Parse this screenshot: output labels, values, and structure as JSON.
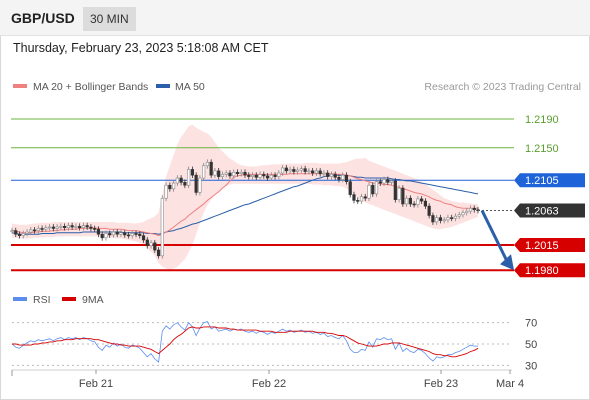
{
  "header": {
    "symbol": "GBP/USD",
    "timeframe": "30 MIN"
  },
  "datetime": "Thursday, February 23, 2023 5:18:08 AM CET",
  "copyright": "Research © 2023 Trading Central",
  "colors": {
    "ma20": "#f08080",
    "ma50": "#2b5fa8",
    "bb": "#fde2e2",
    "green": "#6db33f",
    "blue": "#1f63d9",
    "red": "#d60000",
    "dark": "#333333",
    "rsi": "#5b8def",
    "rsi_ma": "#d60000",
    "arrow": "#2b5fa8",
    "up": "#888888",
    "down": "#333333"
  },
  "chart_data": [
    {
      "type": "candlestick",
      "legend": [
        "MA 20 + Bollinger Bands",
        "MA 50"
      ],
      "ylim": [
        1.1965,
        1.2215
      ],
      "x_ticks": [
        "Feb 21",
        "Feb 22",
        "Feb 23",
        "Mar 4"
      ],
      "levels": [
        {
          "value": 1.219,
          "label": "1.2190",
          "style": "green"
        },
        {
          "value": 1.215,
          "label": "1.2150",
          "style": "green"
        },
        {
          "value": 1.2105,
          "label": "1.2105",
          "style": "blue"
        },
        {
          "value": 1.2015,
          "label": "1.2015",
          "style": "red"
        },
        {
          "value": 1.198,
          "label": "1.1980",
          "style": "red"
        }
      ],
      "last_price": {
        "value": 1.2063,
        "label": "1.2063"
      },
      "projection": {
        "from": 1.2063,
        "to": 1.198
      },
      "close": [
        1.2035,
        1.203,
        1.2028,
        1.2031,
        1.2033,
        1.2036,
        1.2035,
        1.2038,
        1.2037,
        1.2039,
        1.204,
        1.2038,
        1.204,
        1.2041,
        1.2039,
        1.2042,
        1.204,
        1.2041,
        1.2039,
        1.2042,
        1.204,
        1.2038,
        1.2037,
        1.203,
        1.2025,
        1.2031,
        1.2029,
        1.2033,
        1.203,
        1.2032,
        1.2029,
        1.2028,
        1.2031,
        1.203,
        1.2028,
        1.2022,
        1.2014,
        1.2018,
        1.2008,
        1.2,
        1.208,
        1.2098,
        1.2093,
        1.2101,
        1.2108,
        1.2102,
        1.2098,
        1.212,
        1.2112,
        1.2088,
        1.2108,
        1.2125,
        1.213,
        1.2112,
        1.2118,
        1.211,
        1.2113,
        1.2115,
        1.2111,
        1.2116,
        1.2114,
        1.2116,
        1.2112,
        1.211,
        1.2112,
        1.2109,
        1.2113,
        1.2111,
        1.2108,
        1.2112,
        1.211,
        1.2115,
        1.2122,
        1.2118,
        1.212,
        1.2117,
        1.2119,
        1.2121,
        1.2117,
        1.2118,
        1.2115,
        1.2118,
        1.2114,
        1.2115,
        1.211,
        1.2113,
        1.2109,
        1.2106,
        1.2112,
        1.2103,
        1.2085,
        1.2077,
        1.2076,
        1.2082,
        1.208,
        1.2098,
        1.2086,
        1.2103,
        1.2101,
        1.2106,
        1.2102,
        1.2104,
        1.2078,
        1.2094,
        1.2072,
        1.208,
        1.2072,
        1.2071,
        1.2079,
        1.2076,
        1.2069,
        1.2056,
        1.2047,
        1.2053,
        1.2049,
        1.205,
        1.2053,
        1.2052,
        1.2055,
        1.2057,
        1.206,
        1.2062,
        1.2066,
        1.2064,
        1.2063
      ],
      "ma20": [
        1.2036,
        1.2034,
        1.2033,
        1.2032,
        1.2032,
        1.2032,
        1.2033,
        1.2033,
        1.2034,
        1.2034,
        1.2034,
        1.2035,
        1.2035,
        1.2036,
        1.2036,
        1.2037,
        1.2037,
        1.2037,
        1.2038,
        1.2038,
        1.2038,
        1.2038,
        1.2039,
        1.2038,
        1.2038,
        1.2038,
        1.2037,
        1.2037,
        1.2037,
        1.2037,
        1.2036,
        1.2035,
        1.2035,
        1.2035,
        1.2034,
        1.2033,
        1.2032,
        1.2031,
        1.203,
        1.2028,
        1.203,
        1.2033,
        1.2036,
        1.204,
        1.2044,
        1.2048,
        1.2051,
        1.2056,
        1.206,
        1.2064,
        1.2068,
        1.2072,
        1.2077,
        1.2081,
        1.2085,
        1.2089,
        1.2094,
        1.2098,
        1.2104,
        1.2109,
        1.2111,
        1.2112,
        1.2113,
        1.2113,
        1.2113,
        1.2113,
        1.2113,
        1.2113,
        1.2113,
        1.2113,
        1.2113,
        1.2113,
        1.2113,
        1.2113,
        1.2114,
        1.2114,
        1.2114,
        1.2114,
        1.2114,
        1.2114,
        1.2114,
        1.2114,
        1.2114,
        1.2114,
        1.2114,
        1.2114,
        1.2114,
        1.2113,
        1.2113,
        1.2112,
        1.2111,
        1.2109,
        1.2107,
        1.2106,
        1.2104,
        1.2103,
        1.2101,
        1.2101,
        1.21,
        1.2099,
        1.2099,
        1.2098,
        1.2096,
        1.2095,
        1.2093,
        1.2092,
        1.209,
        1.2088,
        1.2087,
        1.2086,
        1.2084,
        1.2082,
        1.2079,
        1.2077,
        1.2076,
        1.2073,
        1.2072,
        1.2071,
        1.2068,
        1.2067,
        1.2066,
        1.2066,
        1.2066,
        1.2066,
        1.2066
      ],
      "ma50": [
        1.2032,
        1.2031,
        1.203,
        1.203,
        1.203,
        1.203,
        1.203,
        1.203,
        1.2031,
        1.2031,
        1.2031,
        1.2031,
        1.2032,
        1.2032,
        1.2032,
        1.2032,
        1.2032,
        1.2032,
        1.2032,
        1.2033,
        1.2033,
        1.2033,
        1.2033,
        1.2033,
        1.2033,
        1.2033,
        1.2033,
        1.2033,
        1.2033,
        1.2033,
        1.2032,
        1.2032,
        1.2032,
        1.2032,
        1.2032,
        1.2032,
        1.2031,
        1.2031,
        1.2031,
        1.203,
        1.2031,
        1.2033,
        1.2034,
        1.2035,
        1.2037,
        1.2038,
        1.204,
        1.2042,
        1.2044,
        1.2045,
        1.2047,
        1.2049,
        1.2051,
        1.2053,
        1.2055,
        1.2057,
        1.2059,
        1.2061,
        1.2063,
        1.2065,
        1.2067,
        1.2069,
        1.2071,
        1.2072,
        1.2074,
        1.2076,
        1.2078,
        1.208,
        1.2082,
        1.2084,
        1.2086,
        1.2088,
        1.209,
        1.2092,
        1.2094,
        1.2096,
        1.2097,
        1.2099,
        1.2101,
        1.2103,
        1.2105,
        1.2107,
        1.2108,
        1.211,
        1.2111,
        1.2112,
        1.2112,
        1.2112,
        1.2112,
        1.2112,
        1.2111,
        1.211,
        1.2109,
        1.2109,
        1.2108,
        1.2108,
        1.2108,
        1.2108,
        1.2108,
        1.2108,
        1.2108,
        1.2107,
        1.2106,
        1.2106,
        1.2105,
        1.2104,
        1.2104,
        1.2103,
        1.2102,
        1.2101,
        1.21,
        1.2099,
        1.2098,
        1.2097,
        1.2096,
        1.2095,
        1.2094,
        1.2093,
        1.2092,
        1.2091,
        1.209,
        1.2089,
        1.2088,
        1.2087,
        1.2086
      ],
      "bb_upper": [
        1.2045,
        1.2044,
        1.2043,
        1.2043,
        1.2043,
        1.2044,
        1.2045,
        1.2045,
        1.2046,
        1.2046,
        1.2046,
        1.2047,
        1.2047,
        1.2047,
        1.2047,
        1.2047,
        1.2047,
        1.2047,
        1.2047,
        1.2047,
        1.2047,
        1.2047,
        1.2047,
        1.2047,
        1.2047,
        1.2047,
        1.2047,
        1.2047,
        1.2046,
        1.2046,
        1.2046,
        1.2046,
        1.2045,
        1.2045,
        1.2046,
        1.2047,
        1.205,
        1.2052,
        1.2055,
        1.206,
        1.2085,
        1.211,
        1.2125,
        1.214,
        1.2155,
        1.2165,
        1.2172,
        1.218,
        1.2182,
        1.2178,
        1.2175,
        1.2172,
        1.217,
        1.2165,
        1.2158,
        1.215,
        1.2145,
        1.214,
        1.2135,
        1.2132,
        1.2128,
        1.2126,
        1.2125,
        1.2124,
        1.2124,
        1.2124,
        1.2125,
        1.2126,
        1.2126,
        1.2127,
        1.2127,
        1.2127,
        1.2128,
        1.2128,
        1.2128,
        1.2128,
        1.2128,
        1.2128,
        1.2129,
        1.2129,
        1.2129,
        1.2129,
        1.2128,
        1.2128,
        1.2128,
        1.2128,
        1.2128,
        1.2128,
        1.2129,
        1.213,
        1.2132,
        1.2134,
        1.2135,
        1.2135,
        1.2136,
        1.2132,
        1.213,
        1.2128,
        1.2126,
        1.2124,
        1.2122,
        1.212,
        1.2118,
        1.2116,
        1.2114,
        1.2112,
        1.211,
        1.2108,
        1.2106,
        1.2103,
        1.21,
        1.2096,
        1.2092,
        1.2088,
        1.2084,
        1.208,
        1.2078,
        1.2076,
        1.2075,
        1.2074,
        1.2074,
        1.2073,
        1.2073,
        1.2072,
        1.2072
      ],
      "bb_lower": [
        1.2025,
        1.2025,
        1.2024,
        1.2024,
        1.2024,
        1.2024,
        1.2025,
        1.2025,
        1.2026,
        1.2026,
        1.2026,
        1.2026,
        1.2027,
        1.2027,
        1.2027,
        1.2027,
        1.2027,
        1.2027,
        1.2027,
        1.2027,
        1.2027,
        1.2027,
        1.2027,
        1.2027,
        1.2026,
        1.2026,
        1.2025,
        1.2025,
        1.2024,
        1.2024,
        1.2023,
        1.2022,
        1.2021,
        1.202,
        1.2018,
        1.2015,
        1.201,
        1.2006,
        1.2,
        1.199,
        1.1985,
        1.1982,
        1.198,
        1.1982,
        1.1985,
        1.199,
        1.1995,
        1.2005,
        1.2015,
        1.203,
        1.2045,
        1.206,
        1.207,
        1.2078,
        1.2085,
        1.209,
        1.2094,
        1.2097,
        1.2099,
        1.21,
        1.21,
        1.21,
        1.21,
        1.21,
        1.21,
        1.21,
        1.21,
        1.21,
        1.21,
        1.21,
        1.21,
        1.21,
        1.21,
        1.21,
        1.21,
        1.21,
        1.21,
        1.21,
        1.21,
        1.21,
        1.2099,
        1.2099,
        1.2099,
        1.2098,
        1.2098,
        1.2098,
        1.2097,
        1.2097,
        1.2096,
        1.2093,
        1.209,
        1.2085,
        1.208,
        1.2076,
        1.2074,
        1.2072,
        1.207,
        1.2068,
        1.2066,
        1.2064,
        1.2062,
        1.206,
        1.2058,
        1.2056,
        1.2054,
        1.2052,
        1.205,
        1.2048,
        1.2046,
        1.2044,
        1.2042,
        1.204,
        1.2038,
        1.2037,
        1.2037,
        1.2038,
        1.2039,
        1.204,
        1.2042,
        1.2044,
        1.2046,
        1.2048,
        1.205,
        1.2052,
        1.2054
      ]
    },
    {
      "type": "line",
      "legend": [
        "RSI",
        "9MA"
      ],
      "ylim": [
        20,
        80
      ],
      "y_ticks": [
        70,
        50,
        30
      ],
      "rsi": [
        50,
        47,
        46,
        49,
        51,
        53,
        52,
        54,
        53,
        54,
        55,
        53,
        55,
        56,
        54,
        56,
        55,
        56,
        54,
        56,
        55,
        53,
        52,
        47,
        44,
        49,
        47,
        51,
        48,
        50,
        47,
        46,
        49,
        48,
        46,
        42,
        38,
        41,
        36,
        33,
        62,
        67,
        64,
        68,
        70,
        66,
        63,
        70,
        66,
        58,
        65,
        70,
        71,
        64,
        66,
        62,
        63,
        64,
        62,
        64,
        63,
        64,
        62,
        61,
        62,
        60,
        62,
        61,
        59,
        61,
        60,
        62,
        64,
        62,
        63,
        61,
        62,
        63,
        61,
        62,
        60,
        61,
        59,
        60,
        57,
        58,
        56,
        55,
        58,
        53,
        45,
        42,
        42,
        45,
        44,
        52,
        47,
        55,
        54,
        56,
        54,
        55,
        45,
        51,
        43,
        46,
        43,
        42,
        45,
        44,
        41,
        37,
        34,
        38,
        37,
        38,
        40,
        40,
        42,
        43,
        45,
        47,
        49,
        48,
        48
      ],
      "rsi_ma": [
        50,
        50,
        49,
        49,
        49,
        49,
        50,
        50,
        51,
        51,
        52,
        52,
        53,
        53,
        54,
        54,
        54,
        55,
        55,
        55,
        55,
        55,
        54,
        54,
        53,
        52,
        51,
        50,
        50,
        49,
        49,
        48,
        48,
        48,
        48,
        47,
        46,
        45,
        43,
        41,
        44,
        47,
        50,
        54,
        57,
        59,
        62,
        65,
        66,
        65,
        65,
        66,
        66,
        66,
        66,
        65,
        65,
        65,
        64,
        64,
        63,
        63,
        63,
        63,
        63,
        63,
        62,
        62,
        62,
        62,
        61,
        61,
        61,
        61,
        62,
        62,
        62,
        62,
        62,
        62,
        62,
        61,
        61,
        61,
        60,
        60,
        59,
        58,
        58,
        57,
        55,
        53,
        51,
        50,
        49,
        48,
        48,
        48,
        49,
        50,
        50,
        51,
        51,
        51,
        50,
        49,
        48,
        47,
        46,
        45,
        44,
        43,
        41,
        40,
        40,
        39,
        39,
        38,
        38,
        39,
        40,
        41,
        43,
        44,
        46
      ]
    }
  ]
}
